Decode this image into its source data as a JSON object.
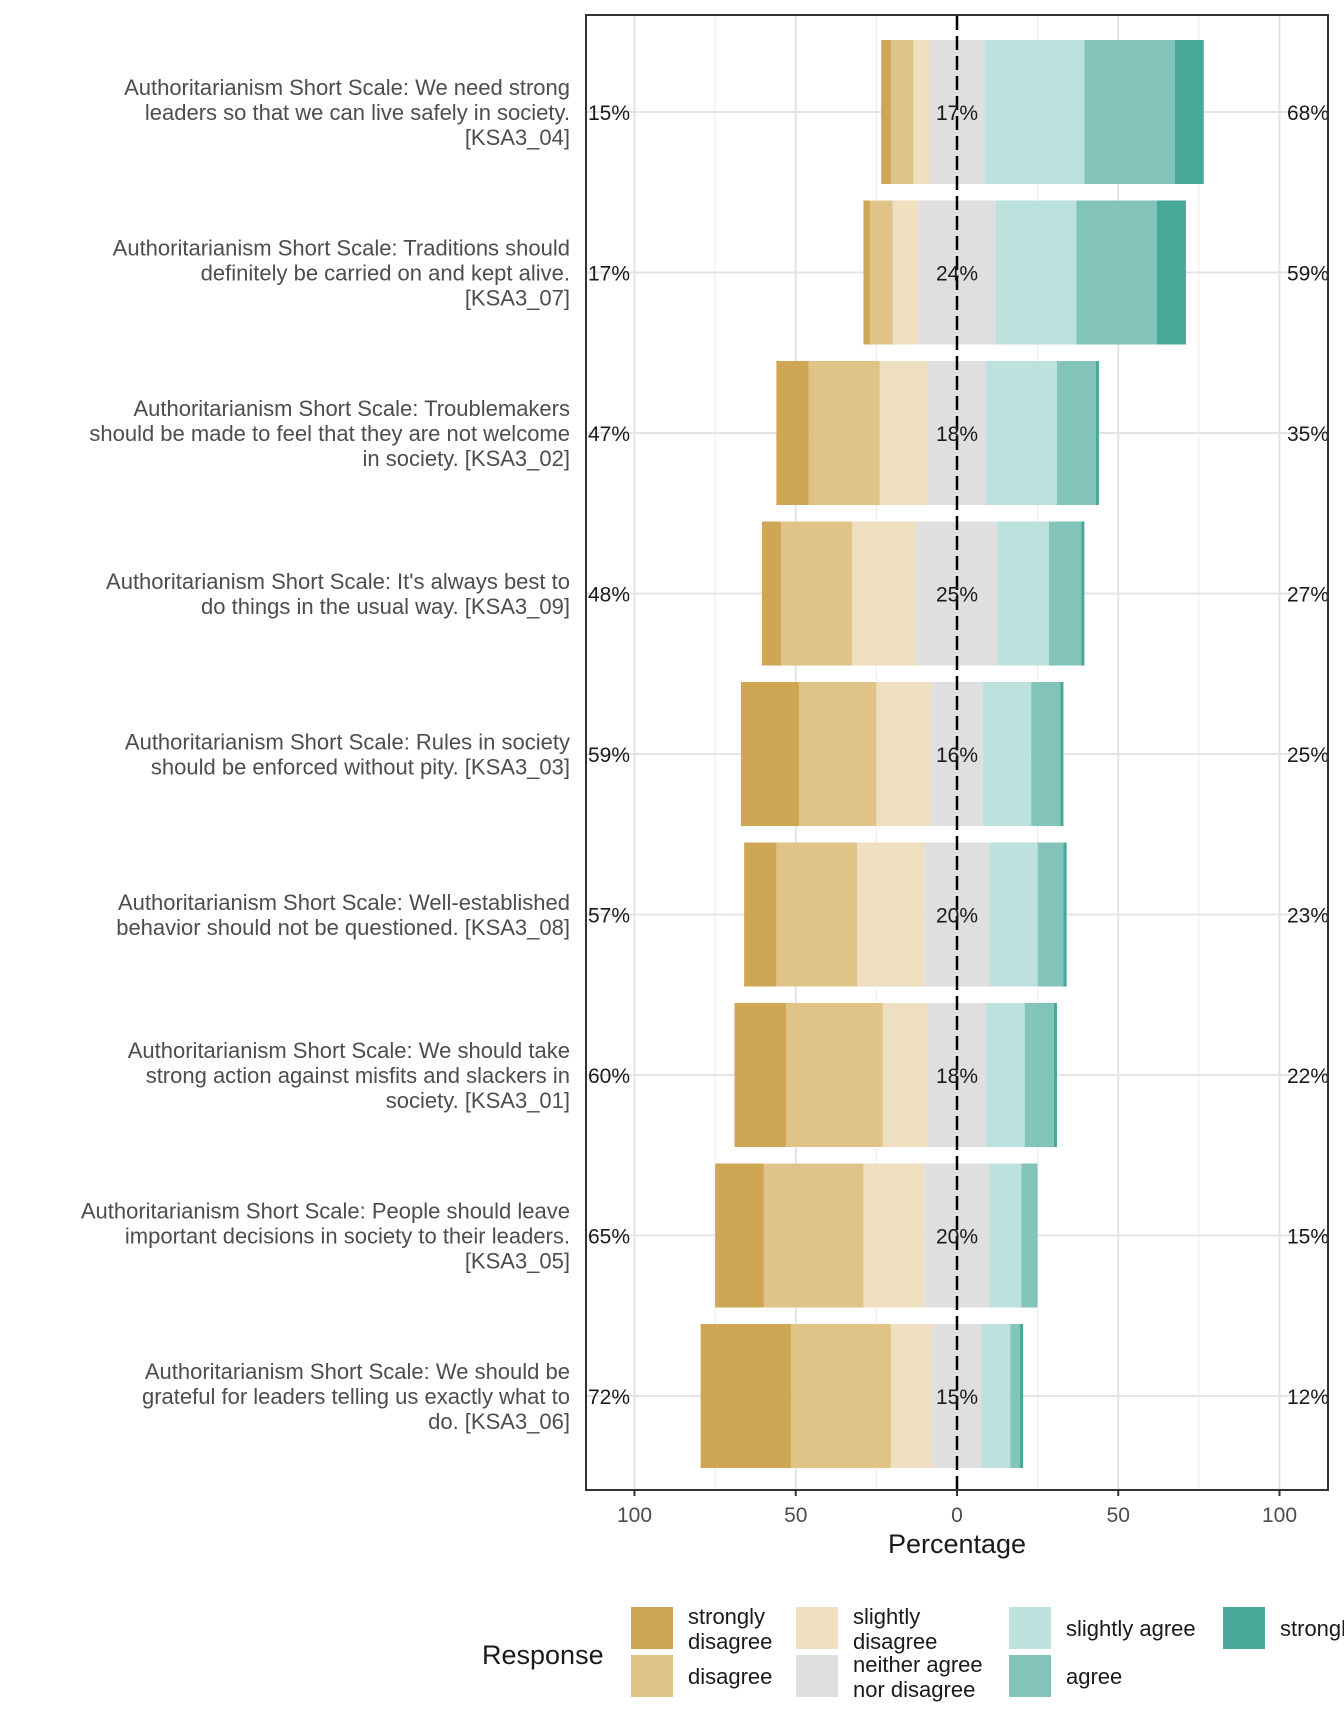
{
  "chart_data": {
    "type": "bar",
    "subtype": "diverging-stacked-likert",
    "xlabel": "Percentage",
    "xlim": [
      -100,
      100
    ],
    "x_ticks": [
      -100,
      -50,
      0,
      50,
      100
    ],
    "x_tick_labels": [
      "100",
      "50",
      "0",
      "50",
      "100"
    ],
    "legend": {
      "title": "Response",
      "position": "bottom",
      "entries": [
        {
          "key": "strongly_disagree",
          "label": "strongly disagree",
          "color": "#CFA654"
        },
        {
          "key": "disagree",
          "label": "disagree",
          "color": "#DFC387"
        },
        {
          "key": "slightly_disagree",
          "label": "slightly disagree",
          "color": "#EDDFC0"
        },
        {
          "key": "neither",
          "label": "neither agree nor disagree",
          "color": "#DFDFDF"
        },
        {
          "key": "slightly_agree",
          "label": "slightly agree",
          "color": "#BDE1DD"
        },
        {
          "key": "agree",
          "label": "agree",
          "color": "#82C4BA"
        },
        {
          "key": "strongly_agree",
          "label": "strongly agree",
          "color": "#4AA89A"
        }
      ]
    },
    "categories_order": [
      "strongly_disagree",
      "disagree",
      "slightly_disagree",
      "neither",
      "slightly_agree",
      "agree",
      "strongly_agree"
    ],
    "items": [
      {
        "label": "Authoritarianism Short Scale: We need strong leaders so that we can live safely in society. [KSA3_04]",
        "label_lines": [
          "Authoritarianism Short Scale: We need strong",
          "leaders so that we can live safely in society.",
          "[KSA3_04]"
        ],
        "values": [
          3,
          7,
          5,
          17,
          31,
          28,
          9
        ],
        "low_pct": "15%",
        "neutral_pct": "17%",
        "high_pct": "68%"
      },
      {
        "label": "Authoritarianism Short Scale: Traditions should definitely be carried on and kept alive. [KSA3_07]",
        "label_lines": [
          "Authoritarianism Short Scale: Traditions should",
          "definitely be carried on and kept alive.",
          "[KSA3_07]"
        ],
        "values": [
          2,
          7,
          8,
          24,
          25,
          25,
          9
        ],
        "low_pct": "17%",
        "neutral_pct": "24%",
        "high_pct": "59%"
      },
      {
        "label": "Authoritarianism Short Scale: Troublemakers should be made to feel that they are not welcome in society. [KSA3_02]",
        "label_lines": [
          "Authoritarianism Short Scale: Troublemakers",
          "should be made to feel that they are not welcome",
          "in society. [KSA3_02]"
        ],
        "values": [
          10,
          22,
          15,
          18,
          22,
          12,
          1
        ],
        "low_pct": "47%",
        "neutral_pct": "18%",
        "high_pct": "35%"
      },
      {
        "label": "Authoritarianism Short Scale: It's always best to do things in the usual way. [KSA3_09]",
        "label_lines": [
          "Authoritarianism Short Scale: It's always best to",
          "do things in the usual way. [KSA3_09]"
        ],
        "values": [
          6,
          22,
          20,
          25,
          16,
          10,
          1
        ],
        "low_pct": "48%",
        "neutral_pct": "25%",
        "high_pct": "27%"
      },
      {
        "label": "Authoritarianism Short Scale: Rules in society should be enforced without pity. [KSA3_03]",
        "label_lines": [
          "Authoritarianism Short Scale: Rules in society",
          "should be enforced without pity. [KSA3_03]"
        ],
        "values": [
          18,
          24,
          17,
          16,
          15,
          9,
          1
        ],
        "low_pct": "59%",
        "neutral_pct": "16%",
        "high_pct": "25%"
      },
      {
        "label": "Authoritarianism Short Scale: Well-established behavior should not be questioned. [KSA3_08]",
        "label_lines": [
          "Authoritarianism Short Scale: Well-established",
          "behavior should not be questioned. [KSA3_08]"
        ],
        "values": [
          10,
          25,
          21,
          20,
          15,
          8,
          1
        ],
        "low_pct": "57%",
        "neutral_pct": "20%",
        "high_pct": "23%"
      },
      {
        "label": "Authoritarianism Short Scale: We should take strong action against misfits and slackers in society. [KSA3_01]",
        "label_lines": [
          "Authoritarianism Short Scale: We should take",
          "strong action against misfits and slackers in",
          "society. [KSA3_01]"
        ],
        "values": [
          16,
          30,
          14,
          18,
          12,
          9,
          1
        ],
        "low_pct": "60%",
        "neutral_pct": "18%",
        "high_pct": "22%"
      },
      {
        "label": "Authoritarianism Short Scale: People should leave important decisions in society to their leaders. [KSA3_05]",
        "label_lines": [
          "Authoritarianism Short Scale: People should leave",
          "important decisions in society to their leaders.",
          "[KSA3_05]"
        ],
        "values": [
          15,
          31,
          19,
          20,
          10,
          5,
          0
        ],
        "low_pct": "65%",
        "neutral_pct": "20%",
        "high_pct": "15%"
      },
      {
        "label": "Authoritarianism Short Scale: We should be grateful for leaders telling us exactly what to do. [KSA3_06]",
        "label_lines": [
          "Authoritarianism Short Scale: We should be",
          "grateful for leaders telling us exactly what to",
          "do. [KSA3_06]"
        ],
        "values": [
          28,
          31,
          13,
          15,
          9,
          3,
          1
        ],
        "low_pct": "72%",
        "neutral_pct": "15%",
        "high_pct": "12%"
      }
    ]
  }
}
